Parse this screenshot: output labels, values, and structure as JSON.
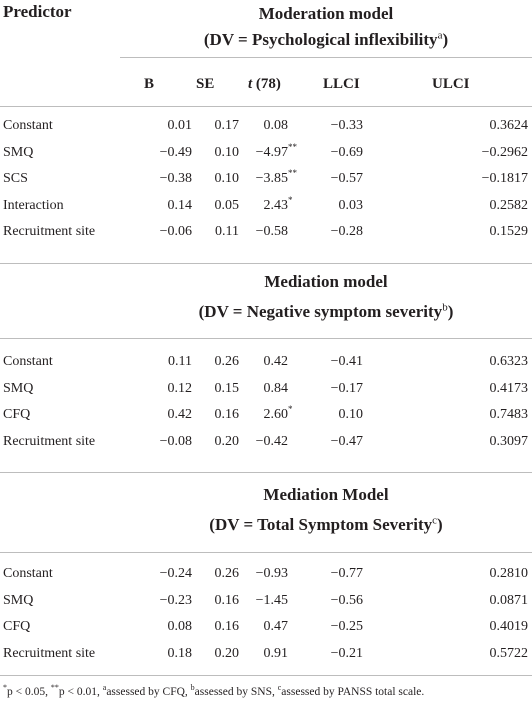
{
  "header": {
    "predictor": "Predictor",
    "columns": {
      "b": "B",
      "se": "SE",
      "t_italic": "t",
      "t_rest": " (78)",
      "llci": "LLCI",
      "ulci": "ULCI"
    }
  },
  "sections": [
    {
      "title_line1": "Moderation model",
      "title_line2": "(DV = Psychological inflexibility",
      "title_sup": "a",
      "title_close": ")",
      "rows": [
        {
          "label": "Constant",
          "b": "0.01",
          "se": "0.17",
          "t": "0.08",
          "sig": "",
          "llci": "−0.33",
          "ulci": "0.3624"
        },
        {
          "label": "SMQ",
          "b": "−0.49",
          "se": "0.10",
          "t": "−4.97",
          "sig": "**",
          "llci": "−0.69",
          "ulci": "−0.2962"
        },
        {
          "label": "SCS",
          "b": "−0.38",
          "se": "0.10",
          "t": "−3.85",
          "sig": "**",
          "llci": "−0.57",
          "ulci": "−0.1817"
        },
        {
          "label": "Interaction",
          "b": "0.14",
          "se": "0.05",
          "t": "2.43",
          "sig": "*",
          "llci": "0.03",
          "ulci": "0.2582"
        },
        {
          "label": "Recruitment site",
          "b": "−0.06",
          "se": "0.11",
          "t": "−0.58",
          "sig": "",
          "llci": "−0.28",
          "ulci": "0.1529"
        }
      ]
    },
    {
      "title_line1": "Mediation model",
      "title_line2": "(DV = Negative symptom severity",
      "title_sup": "b",
      "title_close": ")",
      "rows": [
        {
          "label": "Constant",
          "b": "0.11",
          "se": "0.26",
          "t": "0.42",
          "sig": "",
          "llci": "−0.41",
          "ulci": "0.6323"
        },
        {
          "label": "SMQ",
          "b": "0.12",
          "se": "0.15",
          "t": "0.84",
          "sig": "",
          "llci": "−0.17",
          "ulci": "0.4173"
        },
        {
          "label": "CFQ",
          "b": "0.42",
          "se": "0.16",
          "t": "2.60",
          "sig": "*",
          "llci": "0.10",
          "ulci": "0.7483"
        },
        {
          "label": "Recruitment site",
          "b": "−0.08",
          "se": "0.20",
          "t": "−0.42",
          "sig": "",
          "llci": "−0.47",
          "ulci": "0.3097"
        }
      ]
    },
    {
      "title_line1": "Mediation Model",
      "title_line2": "(DV = Total Symptom Severity",
      "title_sup": "c",
      "title_close": ")",
      "rows": [
        {
          "label": "Constant",
          "b": "−0.24",
          "se": "0.26",
          "t": "−0.93",
          "sig": "",
          "llci": "−0.77",
          "ulci": "0.2810"
        },
        {
          "label": "SMQ",
          "b": "−0.23",
          "se": "0.16",
          "t": "−1.45",
          "sig": "",
          "llci": "−0.56",
          "ulci": "0.0871"
        },
        {
          "label": "CFQ",
          "b": "0.08",
          "se": "0.16",
          "t": "0.47",
          "sig": "",
          "llci": "−0.25",
          "ulci": "0.4019"
        },
        {
          "label": "Recruitment site",
          "b": "0.18",
          "se": "0.20",
          "t": "0.91",
          "sig": "",
          "llci": "−0.21",
          "ulci": "0.5722"
        }
      ]
    }
  ],
  "footnote": {
    "p1_sup": "*",
    "p1_text": "p < 0.05, ",
    "p2_sup": "**",
    "p2_text": "p < 0.01, ",
    "a_sup": "a",
    "a_text": "assessed by CFQ, ",
    "b_sup": "b",
    "b_text": "assessed by SNS, ",
    "c_sup": "c",
    "c_text": "assessed by PANSS total scale."
  }
}
